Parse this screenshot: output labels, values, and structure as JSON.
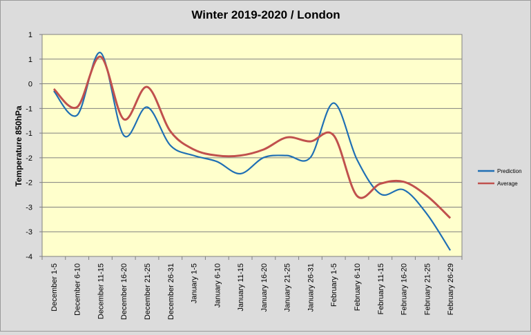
{
  "chart_data": {
    "type": "line",
    "title": "Winter 2019-2020 / London",
    "xlabel": "",
    "ylabel": "Temperature 850hPa",
    "categories": [
      "December 1-5",
      "December 6-10",
      "December 11-15",
      "December 16-20",
      "December 21-25",
      "December 26-31",
      "January 1-5",
      "January 6-10",
      "January 11-15",
      "January 16-20",
      "January 21-25",
      "January 26-31",
      "February 1-5",
      "February 6-10",
      "February 11-15",
      "February 16-20",
      "February 21-25",
      "February 26-29"
    ],
    "yticks": [
      "1",
      "1",
      "0",
      "-1",
      "-1",
      "-2",
      "-2",
      "-3",
      "-3",
      "-4"
    ],
    "ylim": [
      -4,
      1.5
    ],
    "grid": true,
    "legend_position": "right",
    "series": [
      {
        "name": "Prediction",
        "color": "#1f6fb4",
        "values": [
          0.1,
          -0.5,
          1.05,
          -1.0,
          -0.3,
          -1.25,
          -1.5,
          -1.65,
          -1.95,
          -1.55,
          -1.5,
          -1.55,
          -0.2,
          -1.6,
          -2.45,
          -2.35,
          -2.95,
          -3.85
        ]
      },
      {
        "name": "Average",
        "color": "#c0504d",
        "values": [
          0.15,
          -0.3,
          0.95,
          -0.6,
          0.2,
          -0.9,
          -1.35,
          -1.5,
          -1.5,
          -1.35,
          -1.05,
          -1.15,
          -1.0,
          -2.5,
          -2.2,
          -2.15,
          -2.5,
          -3.05
        ]
      }
    ]
  }
}
